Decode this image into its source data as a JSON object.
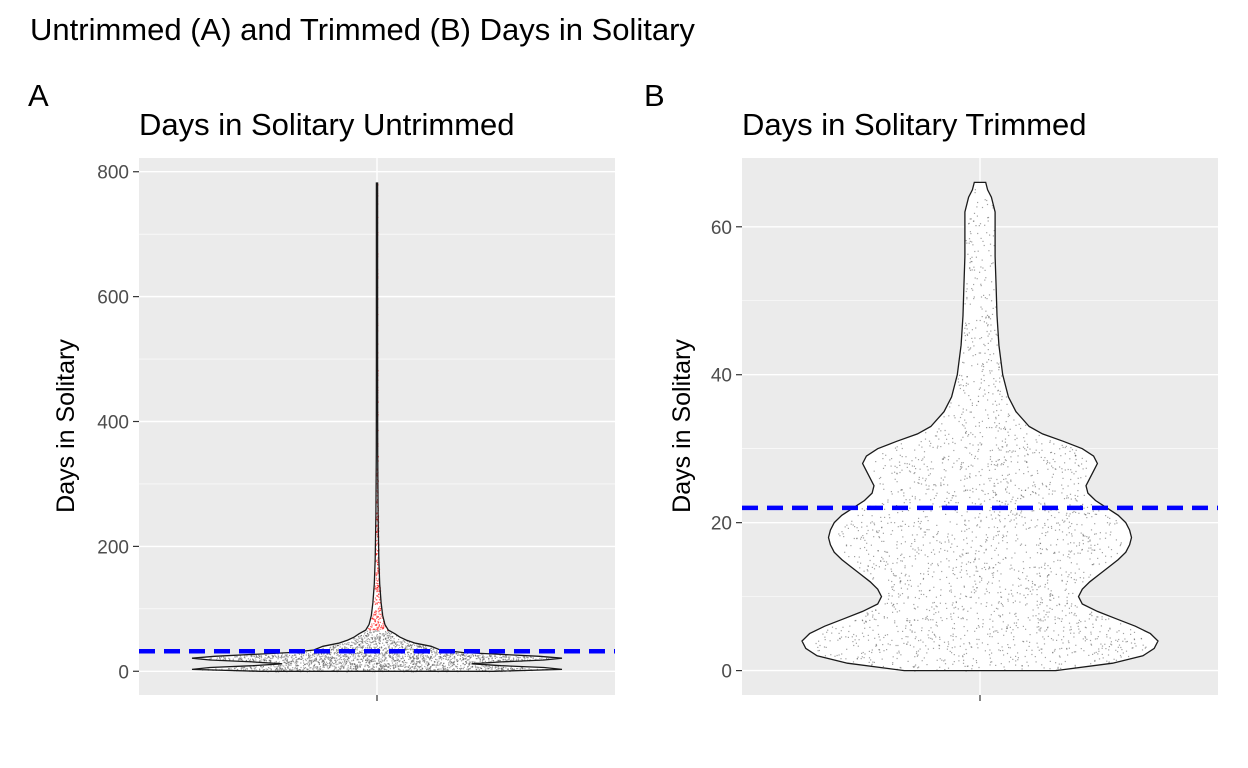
{
  "figure": {
    "title": "Untrimmed (A) and Trimmed (B) Days in Solitary",
    "background": "#ffffff",
    "panel_background": "#ebebeb",
    "grid_color": "#ffffff",
    "reference_line_color": "#0000ff"
  },
  "chart_data": [
    {
      "type": "violin",
      "panel_tag": "A",
      "title": "Days in Solitary Untrimmed",
      "xlabel": "",
      "ylabel": "Days in Solitary",
      "ylim": [
        -38,
        822
      ],
      "y_ticks": [
        0,
        200,
        400,
        600,
        800
      ],
      "grid": true,
      "x_tick_labels": [
        ""
      ],
      "reference_line": {
        "y": 32,
        "style": "dashed",
        "color": "#0000ff"
      },
      "points_color_normal": "#555555",
      "points_color_outlier": "#ff0000",
      "outlier_threshold": 66,
      "violin_fill": "#ffffff",
      "violin_outline": "#1a1a1a",
      "density_profile": [
        [
          0,
          0.52
        ],
        [
          3,
          0.82
        ],
        [
          6,
          0.74
        ],
        [
          9,
          0.55
        ],
        [
          12,
          0.42
        ],
        [
          15,
          0.55
        ],
        [
          18,
          0.74
        ],
        [
          21,
          0.82
        ],
        [
          24,
          0.72
        ],
        [
          27,
          0.55
        ],
        [
          30,
          0.38
        ],
        [
          34,
          0.28
        ],
        [
          40,
          0.24
        ],
        [
          45,
          0.17
        ],
        [
          50,
          0.13
        ],
        [
          55,
          0.1
        ],
        [
          60,
          0.08
        ],
        [
          66,
          0.05
        ],
        [
          75,
          0.035
        ],
        [
          90,
          0.025
        ],
        [
          110,
          0.018
        ],
        [
          140,
          0.012
        ],
        [
          180,
          0.008
        ],
        [
          250,
          0.005
        ],
        [
          350,
          0.003
        ],
        [
          500,
          0.002
        ],
        [
          650,
          0.0015
        ],
        [
          782,
          0.001
        ]
      ]
    },
    {
      "type": "violin",
      "panel_tag": "B",
      "title": "Days in Solitary Trimmed",
      "xlabel": "",
      "ylabel": "Days in Solitary",
      "ylim": [
        -3.3,
        69.3
      ],
      "y_ticks": [
        0,
        20,
        40,
        60
      ],
      "grid": true,
      "x_tick_labels": [
        ""
      ],
      "reference_line": {
        "y": 22,
        "style": "dashed",
        "color": "#0000ff"
      },
      "points_color_normal": "#555555",
      "violin_fill": "#ffffff",
      "violin_outline": "#1a1a1a",
      "density_profile": [
        [
          0,
          0.4
        ],
        [
          1,
          0.7
        ],
        [
          2,
          0.86
        ],
        [
          3,
          0.92
        ],
        [
          4,
          0.94
        ],
        [
          5,
          0.9
        ],
        [
          6,
          0.82
        ],
        [
          7,
          0.72
        ],
        [
          8,
          0.62
        ],
        [
          9,
          0.54
        ],
        [
          10,
          0.52
        ],
        [
          11,
          0.54
        ],
        [
          12,
          0.58
        ],
        [
          13,
          0.63
        ],
        [
          14,
          0.68
        ],
        [
          15,
          0.73
        ],
        [
          16,
          0.77
        ],
        [
          17,
          0.79
        ],
        [
          18,
          0.8
        ],
        [
          19,
          0.79
        ],
        [
          20,
          0.77
        ],
        [
          21,
          0.73
        ],
        [
          22,
          0.67
        ],
        [
          23,
          0.61
        ],
        [
          24,
          0.57
        ],
        [
          25,
          0.56
        ],
        [
          26,
          0.58
        ],
        [
          27,
          0.6
        ],
        [
          28,
          0.62
        ],
        [
          29,
          0.6
        ],
        [
          30,
          0.54
        ],
        [
          31,
          0.44
        ],
        [
          32,
          0.33
        ],
        [
          33,
          0.26
        ],
        [
          35,
          0.19
        ],
        [
          37,
          0.15
        ],
        [
          40,
          0.12
        ],
        [
          44,
          0.1
        ],
        [
          48,
          0.09
        ],
        [
          52,
          0.085
        ],
        [
          56,
          0.08
        ],
        [
          59,
          0.08
        ],
        [
          62,
          0.08
        ],
        [
          64,
          0.06
        ],
        [
          65,
          0.04
        ],
        [
          66,
          0.03
        ]
      ]
    }
  ]
}
